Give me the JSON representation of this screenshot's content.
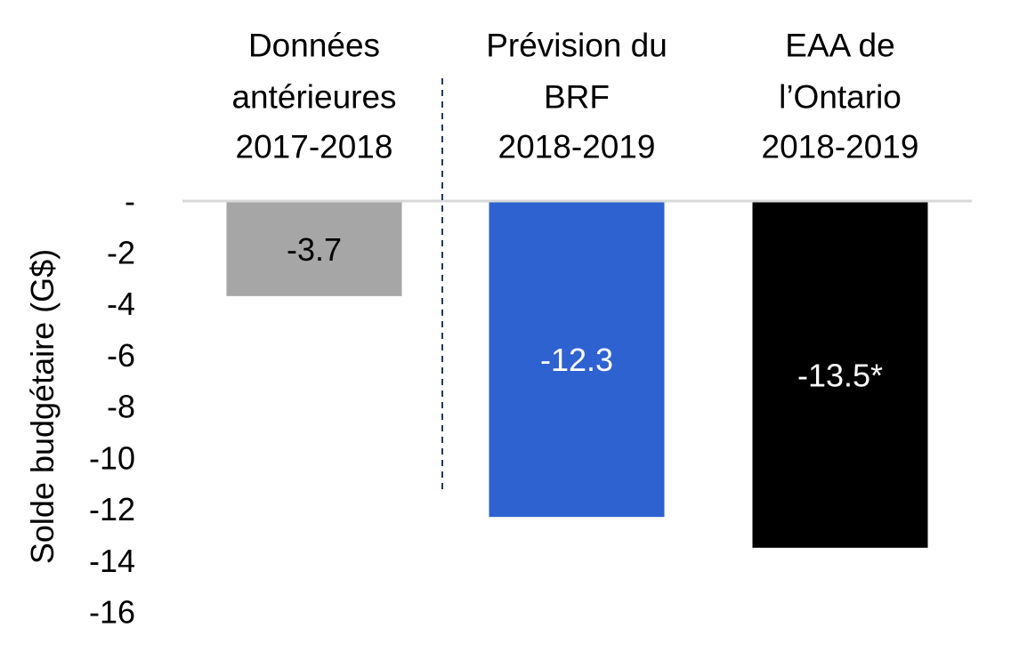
{
  "chart_data": {
    "type": "bar",
    "categories": [
      [
        "Données",
        "antérieures",
        "2017-2018"
      ],
      [
        "Prévision du",
        "BRF",
        "2018-2019"
      ],
      [
        "EAA de",
        "l’Ontario",
        "2018-2019"
      ]
    ],
    "values": [
      -3.7,
      -12.3,
      -13.5
    ],
    "data_labels": [
      "-3.7",
      "-12.3",
      "-13.5*"
    ],
    "colors": [
      "#a6a6a6",
      "#2e62d0",
      "#000000"
    ],
    "label_colors": [
      "#000000",
      "#ffffff",
      "#ffffff"
    ],
    "ylabel": "Solde budgétaire (G$)",
    "ylim": [
      -16,
      0
    ],
    "y_ticks": [
      0,
      -2,
      -4,
      -6,
      -8,
      -10,
      -12,
      -14,
      -16
    ],
    "y_tick_labels": [
      "-",
      "-2",
      "-4",
      "-6",
      "-8",
      "-10",
      "-12",
      "-14",
      "-16"
    ],
    "grid": false,
    "legend": "none",
    "annotations": [
      "dashed vertical separator between historical and projected bars"
    ]
  }
}
